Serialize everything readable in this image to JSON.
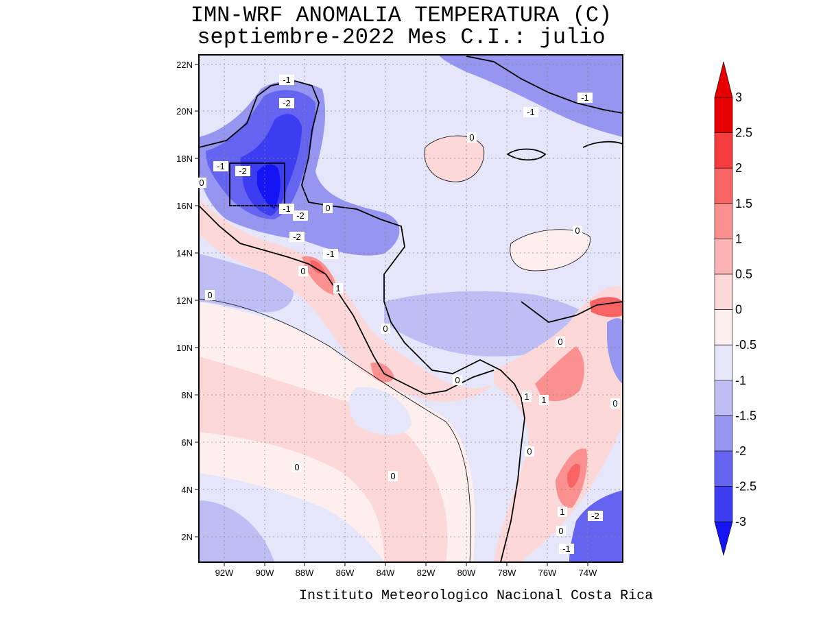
{
  "header": {
    "title_line1": "IMN-WRF  ANOMALIA TEMPERATURA (C)",
    "title_line2": "septiembre-2022 Mes C.I.: julio"
  },
  "map": {
    "lon_labels": [
      "92W",
      "90W",
      "88W",
      "86W",
      "84W",
      "82W",
      "80W",
      "78W",
      "76W",
      "74W"
    ],
    "lat_labels": [
      "22N",
      "20N",
      "18N",
      "16N",
      "14N",
      "12N",
      "10N",
      "8N",
      "6N",
      "4N",
      "2N"
    ],
    "contour_labels": [
      "-1",
      "-2",
      "-1",
      "-1",
      "-2",
      "0",
      "-1",
      "-2",
      "0",
      "-1",
      "-2",
      "-1",
      "0",
      "0",
      "0",
      "1",
      "0",
      "0",
      "0",
      "0",
      "1",
      "0",
      "1",
      "0",
      "0",
      "0",
      "-2",
      "-1",
      "0",
      "1"
    ]
  },
  "colorbar": {
    "labels": [
      "3",
      "2.5",
      "2",
      "1.5",
      "1",
      "0.5",
      "0",
      "-0.5",
      "-1",
      "-1.5",
      "-2",
      "-2.5",
      "-3"
    ],
    "colors": [
      "#e60000",
      "#f43c3c",
      "#f86464",
      "#fa9090",
      "#fbb4b4",
      "#fcd8d8",
      "#feeeee",
      "#e6e6fa",
      "#bebef5",
      "#9696f0",
      "#6464f0",
      "#3c3cf0",
      "#1414f5"
    ]
  },
  "footer": {
    "credit": "Instituto Meteorologico Nacional Costa Rica"
  }
}
